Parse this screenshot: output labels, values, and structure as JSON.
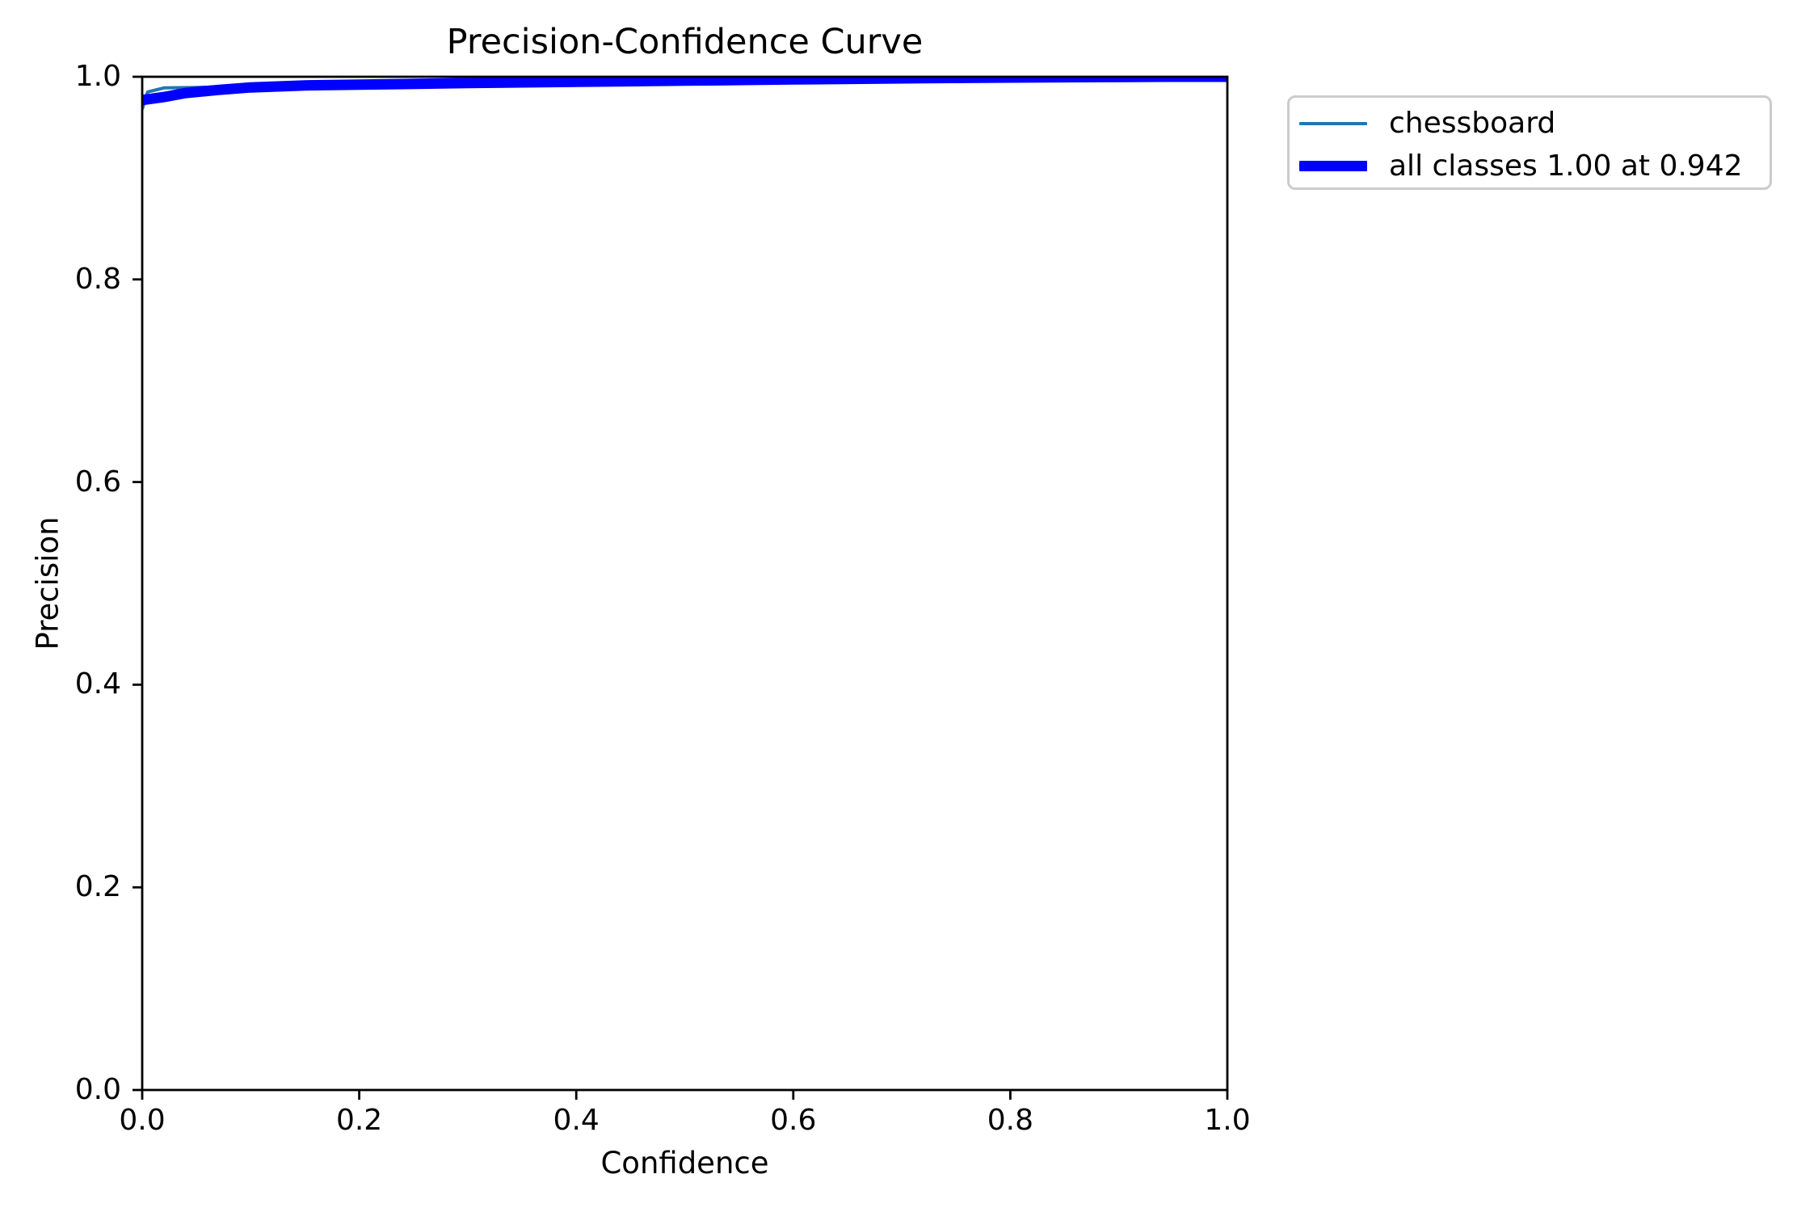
{
  "chart_data": {
    "type": "line",
    "title": "Precision-Confidence Curve",
    "xlabel": "Confidence",
    "ylabel": "Precision",
    "xlim": [
      0,
      1
    ],
    "ylim": [
      0,
      1
    ],
    "xticks": [
      "0.0",
      "0.2",
      "0.4",
      "0.6",
      "0.8",
      "1.0"
    ],
    "yticks": [
      "0.0",
      "0.2",
      "0.4",
      "0.6",
      "0.8",
      "1.0"
    ],
    "grid": false,
    "legend_position": "outside-upper-right",
    "axis_color": "#000000",
    "legend_border_color": "#cccccc",
    "series": [
      {
        "name": "chessboard",
        "label": "chessboard",
        "color": "#1f77b4",
        "linewidth": 4,
        "x": [
          0,
          0.005,
          0.02,
          0.05,
          0.1,
          0.15,
          0.22,
          0.3,
          0.4,
          0.5,
          0.6,
          0.7,
          0.8,
          0.88,
          0.942,
          1.0
        ],
        "y": [
          0.968,
          0.985,
          0.989,
          0.9895,
          0.9905,
          0.9915,
          0.9925,
          0.9935,
          0.9948,
          0.996,
          0.9972,
          0.9983,
          0.9992,
          0.9997,
          1.0,
          1.0
        ]
      },
      {
        "name": "all-classes",
        "label": "all classes 1.00 at 0.942",
        "color": "#0000ff",
        "linewidth": 13,
        "x": [
          0,
          0.02,
          0.04,
          0.07,
          0.1,
          0.15,
          0.22,
          0.3,
          0.4,
          0.5,
          0.6,
          0.7,
          0.8,
          0.88,
          0.942,
          1.0
        ],
        "y": [
          0.977,
          0.98,
          0.984,
          0.987,
          0.9895,
          0.9915,
          0.9925,
          0.9938,
          0.995,
          0.9962,
          0.9974,
          0.9984,
          0.9992,
          0.9997,
          1.0,
          1.0
        ]
      }
    ]
  }
}
